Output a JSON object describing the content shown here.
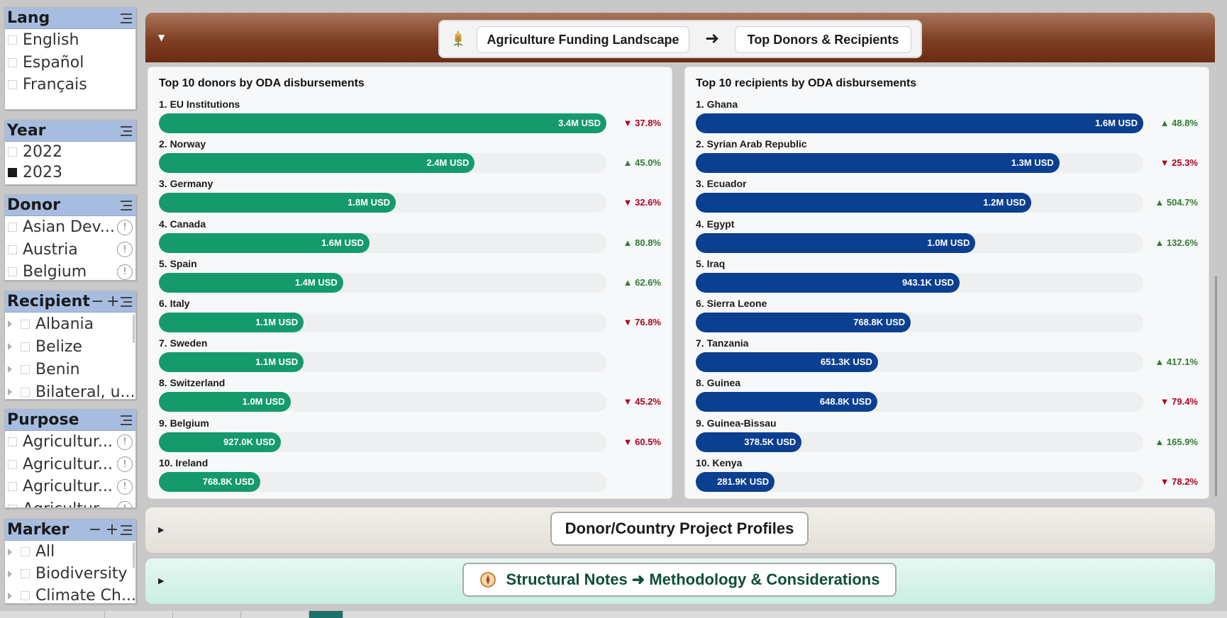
{
  "slicers": {
    "lang": {
      "title": "Lang",
      "items": [
        "English",
        "Español",
        "Français"
      ]
    },
    "year": {
      "title": "Year",
      "items": [
        {
          "label": "2022",
          "checked": false
        },
        {
          "label": "2023",
          "checked": true
        }
      ]
    },
    "donor": {
      "title": "Donor",
      "items": [
        "Asian Dev...",
        "Austria",
        "Belgium"
      ]
    },
    "recipient": {
      "title": "Recipient",
      "collapse": "−",
      "expand": "+",
      "items": [
        "Albania",
        "Belize",
        "Benin",
        "Bilateral, u..."
      ]
    },
    "purpose": {
      "title": "Purpose",
      "items": [
        "Agricultur...",
        "Agricultur...",
        "Agricultur...",
        "Agricultur..."
      ]
    },
    "marker": {
      "title": "Marker",
      "collapse": "−",
      "expand": "+",
      "items": [
        "All",
        "Biodiversity",
        "Climate Ch..."
      ]
    }
  },
  "info_glyph": "!",
  "header": {
    "caret": "▼",
    "crumb1": "Agriculture Funding Landscape",
    "arrow": "➜",
    "crumb2": "Top Donors & Recipients",
    "logo": "wheat-icon"
  },
  "colors": {
    "donor_bar": "#159a6c",
    "recipient_bar": "#0b3f8f",
    "up": "#2e7d32",
    "down": "#b00020",
    "header": "#7e3f24"
  },
  "donors": {
    "title": "Top 10 donors by ODA disbursements",
    "max": 3.4,
    "rows": [
      {
        "label": "1. EU Institutions",
        "value": 3.4,
        "value_text": "3.4M USD",
        "delta": "37.8%",
        "dir": "down"
      },
      {
        "label": "2. Norway",
        "value": 2.4,
        "value_text": "2.4M USD",
        "delta": "45.0%",
        "dir": "up"
      },
      {
        "label": "3. Germany",
        "value": 1.8,
        "value_text": "1.8M USD",
        "delta": "32.6%",
        "dir": "down"
      },
      {
        "label": "4. Canada",
        "value": 1.6,
        "value_text": "1.6M USD",
        "delta": "80.8%",
        "dir": "up"
      },
      {
        "label": "5. Spain",
        "value": 1.4,
        "value_text": "1.4M USD",
        "delta": "62.6%",
        "dir": "up"
      },
      {
        "label": "6. Italy",
        "value": 1.1,
        "value_text": "1.1M USD",
        "delta": "76.8%",
        "dir": "down"
      },
      {
        "label": "7. Sweden",
        "value": 1.1,
        "value_text": "1.1M USD",
        "delta": "",
        "dir": ""
      },
      {
        "label": "8. Switzerland",
        "value": 1.0,
        "value_text": "1.0M USD",
        "delta": "45.2%",
        "dir": "down"
      },
      {
        "label": "9. Belgium",
        "value": 0.927,
        "value_text": "927.0K USD",
        "delta": "60.5%",
        "dir": "down"
      },
      {
        "label": "10. Ireland",
        "value": 0.7688,
        "value_text": "768.8K USD",
        "delta": "",
        "dir": ""
      }
    ]
  },
  "recipients": {
    "title": "Top 10 recipients by ODA disbursements",
    "max": 1.6,
    "rows": [
      {
        "label": "1. Ghana",
        "value": 1.6,
        "value_text": "1.6M USD",
        "delta": "48.8%",
        "dir": "up"
      },
      {
        "label": "2. Syrian Arab Republic",
        "value": 1.3,
        "value_text": "1.3M USD",
        "delta": "25.3%",
        "dir": "down"
      },
      {
        "label": "3. Ecuador",
        "value": 1.2,
        "value_text": "1.2M USD",
        "delta": "504.7%",
        "dir": "up"
      },
      {
        "label": "4. Egypt",
        "value": 1.0,
        "value_text": "1.0M USD",
        "delta": "132.6%",
        "dir": "up"
      },
      {
        "label": "5. Iraq",
        "value": 0.9431,
        "value_text": "943.1K USD",
        "delta": "",
        "dir": ""
      },
      {
        "label": "6. Sierra Leone",
        "value": 0.7688,
        "value_text": "768.8K USD",
        "delta": "",
        "dir": ""
      },
      {
        "label": "7. Tanzania",
        "value": 0.6513,
        "value_text": "651.3K USD",
        "delta": "417.1%",
        "dir": "up"
      },
      {
        "label": "8. Guinea",
        "value": 0.6488,
        "value_text": "648.8K USD",
        "delta": "79.4%",
        "dir": "down"
      },
      {
        "label": "9. Guinea-Bissau",
        "value": 0.3785,
        "value_text": "378.5K USD",
        "delta": "165.9%",
        "dir": "up"
      },
      {
        "label": "10. Kenya",
        "value": 0.2819,
        "value_text": "281.9K USD",
        "delta": "78.2%",
        "dir": "down"
      }
    ]
  },
  "sections": {
    "caret": "▶",
    "profiles": "Donor/Country Project Profiles",
    "notes": "Structural Notes ➜ Methodology & Considerations",
    "notes_icon": "compass-icon"
  }
}
